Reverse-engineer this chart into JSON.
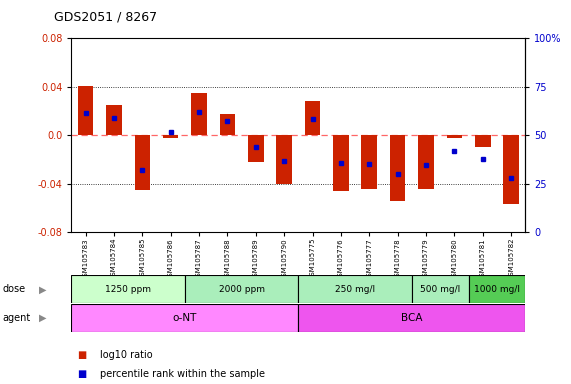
{
  "title": "GDS2051 / 8267",
  "samples": [
    "GSM105783",
    "GSM105784",
    "GSM105785",
    "GSM105786",
    "GSM105787",
    "GSM105788",
    "GSM105789",
    "GSM105790",
    "GSM105775",
    "GSM105776",
    "GSM105777",
    "GSM105778",
    "GSM105779",
    "GSM105780",
    "GSM105781",
    "GSM105782"
  ],
  "log10_ratio": [
    0.041,
    0.025,
    -0.045,
    -0.002,
    0.035,
    0.018,
    -0.022,
    -0.04,
    0.028,
    -0.046,
    -0.044,
    -0.054,
    -0.044,
    -0.002,
    -0.01,
    -0.057
  ],
  "percentile_rank": [
    0.615,
    0.59,
    0.32,
    0.515,
    0.62,
    0.575,
    0.44,
    0.37,
    0.585,
    0.36,
    0.35,
    0.3,
    0.345,
    0.42,
    0.38,
    0.28
  ],
  "ylim": [
    -0.08,
    0.08
  ],
  "yticks_left": [
    -0.08,
    -0.04,
    0.0,
    0.04,
    0.08
  ],
  "yticks_right": [
    0,
    25,
    50,
    75,
    100
  ],
  "dose_groups": [
    {
      "label": "1250 ppm",
      "start": 0,
      "end": 4,
      "color": "#ccffcc"
    },
    {
      "label": "2000 ppm",
      "start": 4,
      "end": 8,
      "color": "#aaeebb"
    },
    {
      "label": "250 mg/l",
      "start": 8,
      "end": 12,
      "color": "#aaeebb"
    },
    {
      "label": "500 mg/l",
      "start": 12,
      "end": 14,
      "color": "#aaeebb"
    },
    {
      "label": "1000 mg/l",
      "start": 14,
      "end": 16,
      "color": "#55cc55"
    }
  ],
  "agent_groups": [
    {
      "label": "o-NT",
      "start": 0,
      "end": 8,
      "color": "#ff88ff"
    },
    {
      "label": "BCA",
      "start": 8,
      "end": 16,
      "color": "#ee55ee"
    }
  ],
  "bar_color": "#cc2200",
  "dot_color": "#0000cc",
  "ref_line_color": "#ff6666",
  "bg_color": "#ffffff",
  "legend_items": [
    {
      "label": "log10 ratio",
      "color": "#cc2200"
    },
    {
      "label": "percentile rank within the sample",
      "color": "#0000cc"
    }
  ]
}
